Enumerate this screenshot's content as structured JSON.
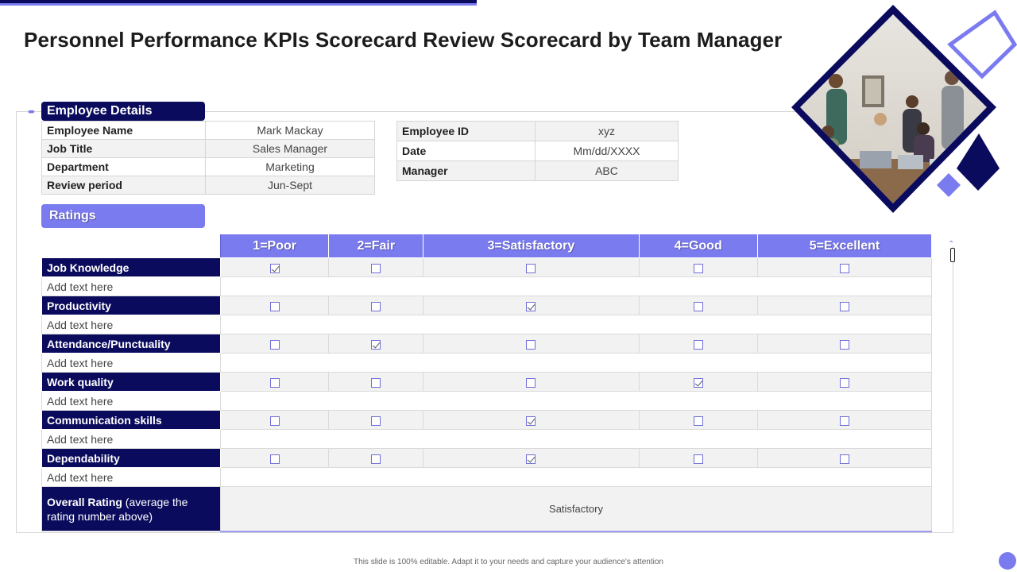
{
  "page": {
    "title": "Personnel Performance KPIs Scorecard Review Scorecard by Team Manager",
    "footer": "This slide is 100% editable. Adapt it to your needs and capture your audience's attention"
  },
  "colors": {
    "dark_navy": "#0b0b5e",
    "accent_purple": "#7b7bf0",
    "light_gray": "#f2f2f2"
  },
  "employee_details": {
    "heading": "Employee Details",
    "left": [
      {
        "label": "Employee Name",
        "value": "Mark Mackay"
      },
      {
        "label": "Job Title",
        "value": "Sales Manager"
      },
      {
        "label": "Department",
        "value": "Marketing"
      },
      {
        "label": "Review period",
        "value": "Jun-Sept"
      }
    ],
    "right": [
      {
        "label": "Employee ID",
        "value": "xyz"
      },
      {
        "label": "Date",
        "value": "Mm/dd/XXXX"
      },
      {
        "label": "Manager",
        "value": "ABC"
      }
    ]
  },
  "ratings": {
    "heading": "Ratings",
    "scale": [
      "1=Poor",
      "2=Fair",
      "3=Satisfactory",
      "4=Good",
      "5=Excellent"
    ],
    "criteria": [
      {
        "name": "Job Knowledge",
        "note": "Add text here",
        "checked": 1
      },
      {
        "name": "Productivity",
        "note": "Add text here",
        "checked": 3
      },
      {
        "name": "Attendance/Punctuality",
        "note": "Add text here",
        "checked": 2
      },
      {
        "name": "Work quality",
        "note": "Add text here",
        "checked": 4
      },
      {
        "name": "Communication  skills",
        "note": "Add text here",
        "checked": 3
      },
      {
        "name": "Dependability",
        "note": "Add text here",
        "checked": 3
      }
    ],
    "overall": {
      "label_bold": "Overall Rating",
      "label_rest": " (average the rating number above)",
      "value": "Satisfactory"
    }
  },
  "image": {
    "icon": "team-meeting-photo"
  }
}
